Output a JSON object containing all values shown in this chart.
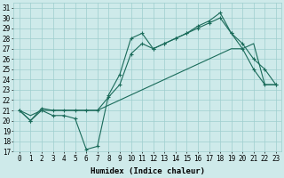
{
  "xlabel": "Humidex (Indice chaleur)",
  "bg_color": "#ceeaea",
  "grid_color": "#9ecece",
  "line_color": "#1a6b5a",
  "xlim": [
    -0.5,
    23.5
  ],
  "ylim": [
    17,
    31.5
  ],
  "yticks": [
    17,
    18,
    19,
    20,
    21,
    22,
    23,
    24,
    25,
    26,
    27,
    28,
    29,
    30,
    31
  ],
  "xticks": [
    0,
    1,
    2,
    3,
    4,
    5,
    6,
    7,
    8,
    9,
    10,
    11,
    12,
    13,
    14,
    15,
    16,
    17,
    18,
    19,
    20,
    21,
    22,
    23
  ],
  "line1_x": [
    0,
    1,
    2,
    3,
    4,
    5,
    6,
    7,
    8,
    9,
    10,
    11,
    12,
    13,
    14,
    15,
    16,
    17,
    18,
    19,
    20,
    21,
    22,
    23
  ],
  "line1_y": [
    21,
    20,
    21,
    20.5,
    20.5,
    20.2,
    17.2,
    17.5,
    22.5,
    24.5,
    28,
    28.5,
    27,
    27.5,
    28,
    28.5,
    29.2,
    29.7,
    30.5,
    28.5,
    27,
    25,
    23.5,
    23.5
  ],
  "line2_x": [
    0,
    1,
    2,
    3,
    4,
    5,
    6,
    7,
    8,
    9,
    10,
    11,
    12,
    13,
    14,
    15,
    16,
    17,
    18,
    19,
    20,
    21,
    22,
    23
  ],
  "line2_y": [
    21,
    20,
    21.2,
    21,
    21,
    21,
    21,
    21,
    22.3,
    23.5,
    26.5,
    27.5,
    27,
    27.5,
    28,
    28.5,
    29,
    29.5,
    30,
    28.5,
    27.5,
    26,
    25,
    23.5
  ],
  "line3_x": [
    0,
    1,
    2,
    3,
    4,
    5,
    6,
    7,
    8,
    9,
    10,
    11,
    12,
    13,
    14,
    15,
    16,
    17,
    18,
    19,
    20,
    21,
    22,
    23
  ],
  "line3_y": [
    21,
    20.5,
    21,
    21,
    21,
    21,
    21,
    21,
    21.5,
    22,
    22.5,
    23,
    23.5,
    24,
    24.5,
    25,
    25.5,
    26,
    26.5,
    27,
    27,
    27.5,
    23.5,
    23.5
  ],
  "tick_fontsize": 5.5,
  "xlabel_fontsize": 6.5
}
